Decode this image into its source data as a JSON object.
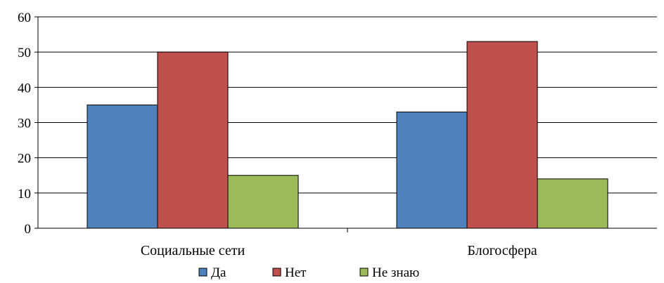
{
  "chart_data": {
    "type": "bar",
    "categories": [
      "Социальные  сети",
      "Блогосфера"
    ],
    "series": [
      {
        "name": "Да",
        "values": [
          35,
          33
        ],
        "color": "#4F81BD"
      },
      {
        "name": "Нет",
        "values": [
          50,
          53
        ],
        "color": "#C0504D"
      },
      {
        "name": "Не знаю",
        "values": [
          15,
          14
        ],
        "color": "#9BBB59"
      }
    ],
    "yticks": [
      0,
      10,
      20,
      30,
      40,
      50,
      60
    ],
    "ylim": [
      0,
      60
    ],
    "grid": true,
    "legend": "bottom",
    "title": "",
    "xlabel": "",
    "ylabel": ""
  }
}
